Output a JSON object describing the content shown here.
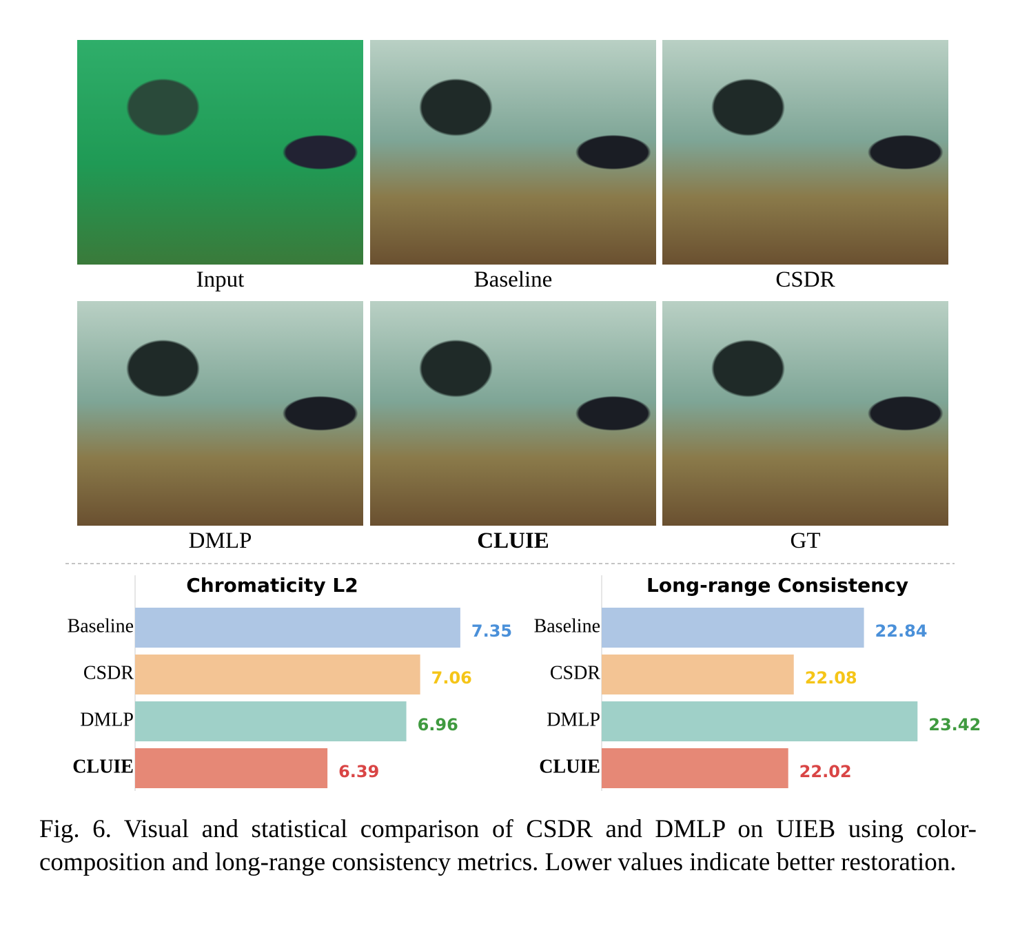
{
  "figure": {
    "panels": [
      {
        "label": "Input",
        "bold": false
      },
      {
        "label": "Baseline",
        "bold": false
      },
      {
        "label": "CSDR",
        "bold": false
      },
      {
        "label": "DMLP",
        "bold": false
      },
      {
        "label": "CLUIE",
        "bold": true
      },
      {
        "label": "GT",
        "bold": false
      }
    ]
  },
  "chart_data": [
    {
      "type": "bar",
      "orientation": "horizontal",
      "title": "Chromaticity L2",
      "categories": [
        "Baseline",
        "CSDR",
        "DMLP",
        "CLUIE"
      ],
      "values": [
        7.35,
        7.06,
        6.96,
        6.39
      ],
      "colors": [
        "#aec6e4",
        "#f3c494",
        "#9fd0c8",
        "#e68876"
      ],
      "label_colors": [
        "#4a90d9",
        "#f5c518",
        "#3f9a3f",
        "#d94545"
      ],
      "bold_categories": [
        false,
        false,
        false,
        true
      ],
      "xlim": [
        5,
        7.5
      ]
    },
    {
      "type": "bar",
      "orientation": "horizontal",
      "title": "Long-range Consistency",
      "categories": [
        "Baseline",
        "CSDR",
        "DMLP",
        "CLUIE"
      ],
      "values": [
        22.84,
        22.08,
        23.42,
        22.02
      ],
      "colors": [
        "#aec6e4",
        "#f3c494",
        "#9fd0c8",
        "#e68876"
      ],
      "label_colors": [
        "#4a90d9",
        "#f5c518",
        "#3f9a3f",
        "#d94545"
      ],
      "bold_categories": [
        false,
        false,
        false,
        true
      ],
      "xlim": [
        20,
        23.5
      ]
    }
  ],
  "caption": "Fig. 6.  Visual and statistical comparison of CSDR and DMLP on UIEB using color-composition and long-range consistency metrics. Lower values indicate better restoration."
}
